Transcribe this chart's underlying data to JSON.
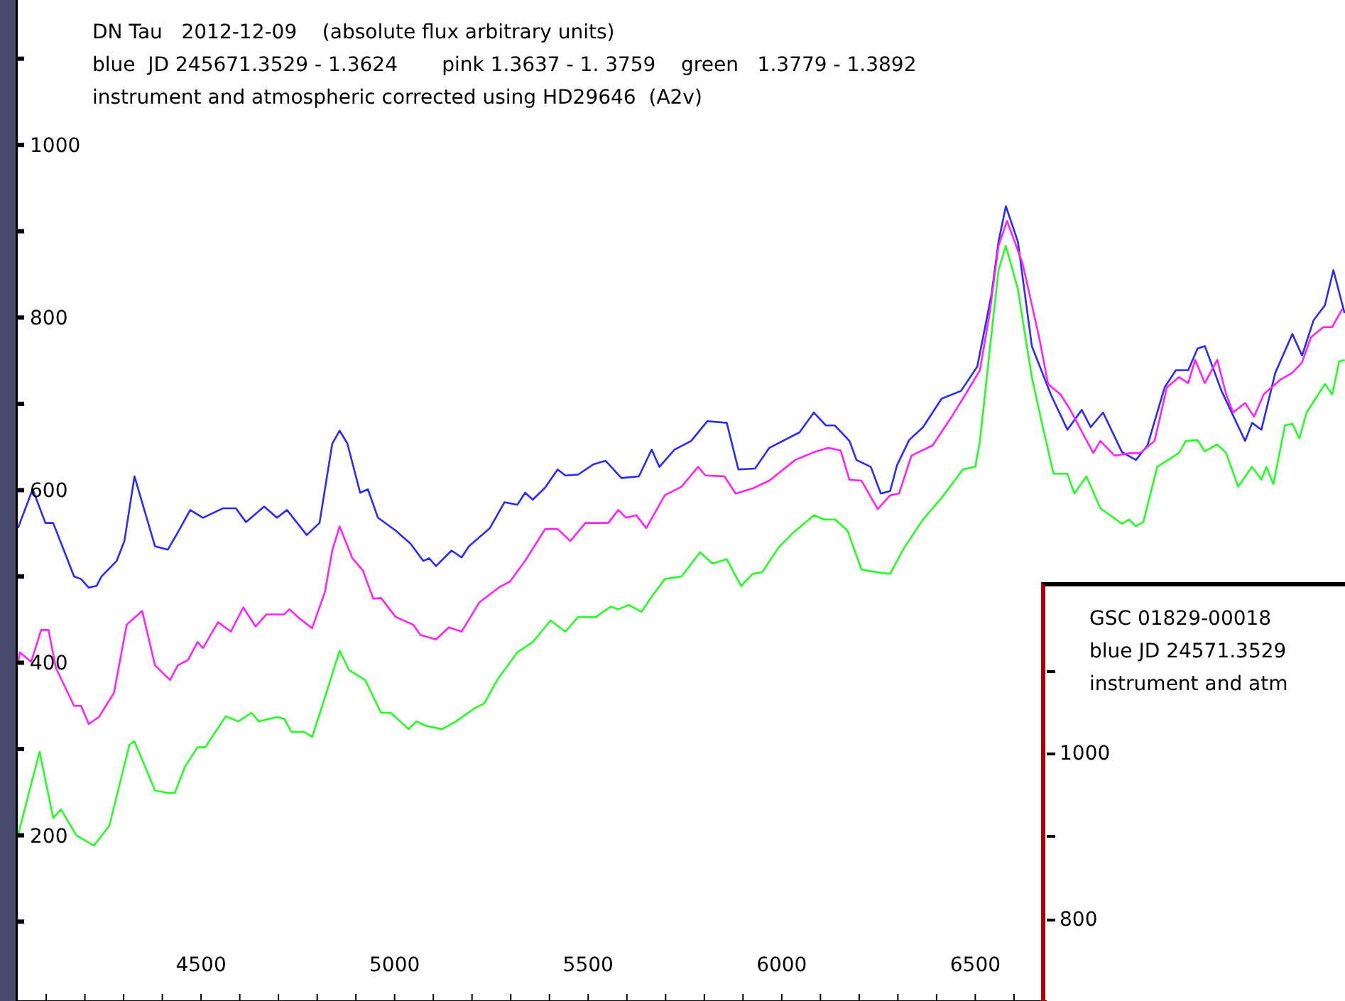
{
  "chart_data": [
    {
      "type": "line",
      "title": "DN Tau   2012-12-09    (absolute flux arbitrary units)",
      "subtitle": "blue  JD 245671.3529 - 1.3624       pink 1.3637 - 1. 3759    green   1.3779 - 1.3892",
      "annotations": [
        "instrument and atmospheric corrected using HD29646  (A2v)"
      ],
      "xlim": [
        4021,
        7455
      ],
      "ylim": [
        8,
        1168
      ],
      "xticks": [
        {
          "value": 4100,
          "label": null
        },
        {
          "value": 4200,
          "label": null
        },
        {
          "value": 4300,
          "label": null
        },
        {
          "value": 4400,
          "label": null
        },
        4500,
        {
          "value": 4600,
          "label": null
        },
        {
          "value": 4700,
          "label": null
        },
        {
          "value": 4800,
          "label": null
        },
        {
          "value": 4900,
          "label": null
        },
        5000,
        {
          "value": 5100,
          "label": null
        },
        {
          "value": 5200,
          "label": null
        },
        {
          "value": 5300,
          "label": null
        },
        {
          "value": 5400,
          "label": null
        },
        5500,
        {
          "value": 5600,
          "label": null
        },
        {
          "value": 5700,
          "label": null
        },
        {
          "value": 5800,
          "label": null
        },
        {
          "value": 5900,
          "label": null
        },
        6000,
        {
          "value": 6100,
          "label": null
        },
        {
          "value": 6200,
          "label": null
        },
        {
          "value": 6300,
          "label": null
        },
        {
          "value": 6400,
          "label": null
        },
        6500,
        {
          "value": 6600,
          "label": null
        }
      ],
      "yticks": [
        {
          "value": 100,
          "label": null
        },
        200,
        {
          "value": 300,
          "label": null
        },
        400,
        {
          "value": 500,
          "label": null
        },
        600,
        {
          "value": 700,
          "label": null
        },
        800,
        {
          "value": 900,
          "label": null
        },
        1000,
        {
          "value": 1100,
          "label": null
        }
      ],
      "series": [
        {
          "color": "#2a2aff",
          "x": [
            4027,
            4065,
            4098,
            4118,
            4172,
            4190,
            4210,
            4230,
            4243,
            4282,
            4302,
            4328,
            4381,
            4414,
            4440,
            4472,
            4505,
            4557,
            4590,
            4616,
            4663,
            4696,
            4722,
            4773,
            4806,
            4839,
            4858,
            4878,
            4911,
            4931,
            4957,
            5003,
            5041,
            5074,
            5089,
            5107,
            5147,
            5173,
            5192,
            5246,
            5284,
            5317,
            5337,
            5357,
            5389,
            5421,
            5441,
            5474,
            5514,
            5545,
            5586,
            5631,
            5664,
            5684,
            5723,
            5766,
            5808,
            5858,
            5888,
            5931,
            5968,
            6046,
            6083,
            6114,
            6137,
            6175,
            6193,
            6230,
            6256,
            6280,
            6298,
            6329,
            6365,
            6413,
            6463,
            6505,
            6542,
            6560,
            6579,
            6610,
            6646,
            6695,
            6738,
            6775,
            6798,
            6830,
            6879,
            6915,
            6945,
            6989,
            7018,
            7050,
            7074,
            7093,
            7136,
            7197,
            7215,
            7239,
            7275,
            7319,
            7344,
            7374,
            7403,
            7425,
            7454
          ],
          "values": [
            556,
            601,
            562,
            562,
            500,
            497,
            487,
            489,
            500,
            518,
            541,
            616,
            535,
            531,
            551,
            577,
            568,
            579,
            579,
            563,
            581,
            568,
            577,
            548,
            562,
            654,
            669,
            654,
            597,
            601,
            568,
            553,
            538,
            518,
            521,
            512,
            530,
            522,
            535,
            556,
            586,
            583,
            597,
            589,
            603,
            624,
            617,
            618,
            630,
            634,
            614,
            616,
            647,
            627,
            647,
            657,
            680,
            678,
            624,
            625,
            649,
            667,
            690,
            675,
            675,
            657,
            635,
            627,
            596,
            599,
            629,
            658,
            673,
            706,
            715,
            743,
            827,
            888,
            929,
            888,
            767,
            711,
            670,
            693,
            673,
            690,
            644,
            635,
            652,
            719,
            739,
            739,
            764,
            767,
            715,
            657,
            678,
            670,
            736,
            781,
            756,
            797,
            814,
            855,
            805
          ]
        },
        {
          "color": "#ff22ff",
          "x": [
            4027,
            4032,
            4061,
            4087,
            4106,
            4125,
            4172,
            4190,
            4210,
            4236,
            4275,
            4308,
            4348,
            4381,
            4420,
            4440,
            4466,
            4491,
            4505,
            4544,
            4577,
            4609,
            4641,
            4669,
            4715,
            4728,
            4755,
            4787,
            4820,
            4839,
            4858,
            4891,
            4918,
            4945,
            4965,
            5003,
            5048,
            5067,
            5107,
            5140,
            5173,
            5219,
            5272,
            5298,
            5337,
            5389,
            5421,
            5454,
            5493,
            5552,
            5578,
            5598,
            5624,
            5650,
            5698,
            5741,
            5784,
            5803,
            5852,
            5881,
            5925,
            5968,
            6035,
            6083,
            6120,
            6152,
            6175,
            6206,
            6248,
            6280,
            6303,
            6335,
            6390,
            6439,
            6487,
            6512,
            6537,
            6560,
            6582,
            6622,
            6665,
            6688,
            6720,
            6743,
            6775,
            6805,
            6823,
            6860,
            6903,
            6926,
            6963,
            6995,
            7026,
            7050,
            7068,
            7093,
            7125,
            7148,
            7166,
            7197,
            7220,
            7245,
            7288,
            7319,
            7344,
            7367,
            7399,
            7422,
            7448
          ],
          "values": [
            400,
            412,
            401,
            438,
            438,
            394,
            350,
            350,
            329,
            337,
            365,
            444,
            460,
            397,
            380,
            397,
            403,
            424,
            417,
            447,
            436,
            464,
            442,
            456,
            456,
            462,
            451,
            440,
            482,
            530,
            558,
            521,
            507,
            474,
            475,
            453,
            444,
            432,
            427,
            441,
            436,
            470,
            488,
            494,
            518,
            555,
            555,
            541,
            562,
            562,
            577,
            568,
            571,
            556,
            594,
            604,
            627,
            617,
            616,
            596,
            602,
            611,
            635,
            644,
            649,
            646,
            612,
            611,
            578,
            594,
            596,
            640,
            652,
            685,
            720,
            739,
            805,
            883,
            912,
            863,
            777,
            723,
            711,
            695,
            668,
            643,
            657,
            640,
            643,
            643,
            657,
            719,
            731,
            724,
            751,
            724,
            751,
            711,
            690,
            701,
            685,
            711,
            728,
            736,
            748,
            777,
            789,
            789,
            810
          ]
        },
        {
          "color": "#22ff22",
          "x": [
            4027,
            4083,
            4118,
            4138,
            4178,
            4223,
            4263,
            4315,
            4328,
            4381,
            4414,
            4432,
            4458,
            4491,
            4511,
            4564,
            4597,
            4630,
            4649,
            4695,
            4715,
            4733,
            4766,
            4787,
            4813,
            4858,
            4883,
            4924,
            4965,
            4990,
            5036,
            5056,
            5081,
            5122,
            5159,
            5206,
            5232,
            5265,
            5317,
            5357,
            5403,
            5441,
            5474,
            5520,
            5558,
            5578,
            5605,
            5638,
            5657,
            5698,
            5741,
            5789,
            5821,
            5858,
            5895,
            5925,
            5950,
            5991,
            6028,
            6083,
            6109,
            6138,
            6170,
            6206,
            6243,
            6280,
            6316,
            6365,
            6413,
            6468,
            6500,
            6512,
            6537,
            6560,
            6579,
            6610,
            6646,
            6670,
            6702,
            6738,
            6756,
            6787,
            6823,
            6879,
            6897,
            6915,
            6934,
            6970,
            7026,
            7044,
            7074,
            7093,
            7125,
            7148,
            7179,
            7215,
            7239,
            7252,
            7270,
            7300,
            7319,
            7337,
            7356,
            7403,
            7422,
            7440,
            7454
          ],
          "values": [
            200,
            297,
            220,
            230,
            200,
            188,
            211,
            305,
            309,
            252,
            249,
            249,
            279,
            302,
            302,
            338,
            332,
            342,
            332,
            337,
            335,
            320,
            320,
            314,
            350,
            414,
            391,
            380,
            342,
            342,
            323,
            332,
            327,
            323,
            332,
            347,
            353,
            380,
            412,
            424,
            449,
            436,
            453,
            453,
            465,
            462,
            467,
            459,
            472,
            497,
            500,
            528,
            515,
            520,
            489,
            503,
            505,
            533,
            550,
            571,
            566,
            566,
            553,
            508,
            505,
            503,
            533,
            566,
            591,
            624,
            627,
            657,
            761,
            855,
            883,
            833,
            731,
            682,
            619,
            619,
            596,
            616,
            579,
            561,
            566,
            558,
            563,
            627,
            643,
            657,
            658,
            645,
            653,
            643,
            604,
            627,
            612,
            627,
            607,
            675,
            677,
            660,
            690,
            723,
            711,
            749,
            751
          ]
        }
      ]
    },
    {
      "type": "other",
      "title": "GSC 01829-00018",
      "subtitle": "blue JD 24571.3529",
      "annotations": [
        "instrument and atm",
        "1000",
        "800"
      ]
    }
  ]
}
